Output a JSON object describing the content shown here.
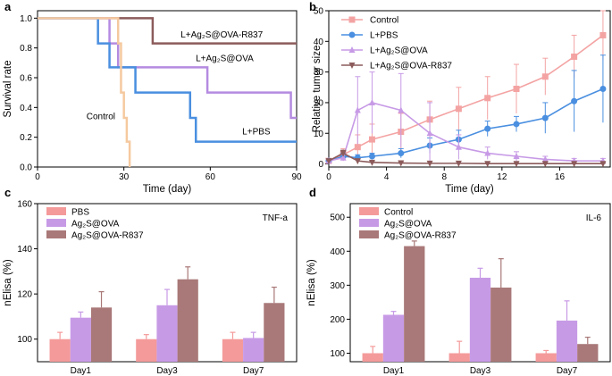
{
  "panels": {
    "a": "a",
    "b": "b",
    "c": "c",
    "d": "d"
  },
  "chart_data": [
    {
      "panel": "a",
      "type": "line",
      "subtype": "step",
      "xlabel": "Time (day)",
      "ylabel": "Survival rate",
      "xlim": [
        0,
        90
      ],
      "ylim": [
        0,
        1.05
      ],
      "xticks": [
        0,
        30,
        60,
        90
      ],
      "yticks": [
        0.0,
        0.2,
        0.4,
        0.6,
        0.8,
        1.0
      ],
      "series": [
        {
          "name": "L+Ag2S@OVA-R837",
          "label": "L+Ag₂S@OVA-R837",
          "color": "#8c5b5b",
          "x": [
            0,
            40,
            40,
            90
          ],
          "y": [
            1.0,
            1.0,
            0.83,
            0.83
          ]
        },
        {
          "name": "L+Ag2S@OVA",
          "label": "L+Ag₂S@OVA",
          "color": "#b48be0",
          "x": [
            0,
            25,
            25,
            28,
            28,
            59,
            59,
            88,
            88,
            90
          ],
          "y": [
            1.0,
            1.0,
            0.83,
            0.83,
            0.67,
            0.67,
            0.5,
            0.5,
            0.33,
            0.33
          ]
        },
        {
          "name": "L+PBS",
          "label": "L+PBS",
          "color": "#4a8fe0",
          "x": [
            0,
            21,
            21,
            25,
            25,
            34,
            34,
            53,
            53,
            55,
            55,
            90
          ],
          "y": [
            1.0,
            1.0,
            0.83,
            0.83,
            0.67,
            0.67,
            0.5,
            0.5,
            0.33,
            0.33,
            0.17,
            0.17
          ]
        },
        {
          "name": "Control",
          "label": "Control",
          "color": "#f5c9a0",
          "x": [
            0,
            28,
            28,
            29,
            29,
            30,
            30,
            31,
            31,
            32,
            32
          ],
          "y": [
            1.0,
            1.0,
            0.83,
            0.83,
            0.5,
            0.5,
            0.33,
            0.33,
            0.17,
            0.17,
            0.0
          ]
        }
      ]
    },
    {
      "panel": "b",
      "type": "line",
      "xlabel": "Time (day)",
      "ylabel": "Relative tumor size",
      "xlim": [
        0,
        19.5
      ],
      "ylim": [
        -1,
        50
      ],
      "xticks": [
        0,
        4,
        8,
        12,
        16
      ],
      "yticks": [
        0,
        10,
        20,
        30,
        40,
        50
      ],
      "legend": "top-left",
      "series": [
        {
          "name": "Control",
          "color": "#f4a3a3",
          "marker": "square",
          "x": [
            0,
            1,
            2,
            3,
            5,
            7,
            9,
            11,
            13,
            15,
            17,
            19
          ],
          "y": [
            1,
            3,
            5.5,
            8,
            10.5,
            14.5,
            18,
            21.5,
            24.5,
            28.5,
            35,
            42
          ],
          "err": [
            0.5,
            2,
            4,
            5,
            6,
            6,
            7,
            7,
            8,
            6,
            7,
            8
          ]
        },
        {
          "name": "L+PBS",
          "color": "#4a8fe0",
          "marker": "circle",
          "x": [
            0,
            1,
            2,
            3,
            5,
            7,
            9,
            11,
            13,
            15,
            17,
            19
          ],
          "y": [
            1,
            2.5,
            2,
            2.5,
            3.5,
            6,
            8,
            11.5,
            13,
            15,
            20.5,
            24.5
          ],
          "err": [
            0.3,
            1,
            1,
            1,
            1.5,
            2.5,
            3,
            2.5,
            2.5,
            5,
            10,
            11
          ]
        },
        {
          "name": "L+Ag2S@OVA",
          "label": "L+Ag₂S@OVA",
          "color": "#c79ae6",
          "marker": "triangle",
          "x": [
            0,
            1,
            2,
            3,
            5,
            7,
            9,
            11,
            13,
            15,
            17,
            19
          ],
          "y": [
            1,
            2,
            17.5,
            20,
            17.5,
            10,
            5.5,
            3.5,
            2.5,
            1.5,
            1,
            1
          ],
          "err": [
            0.3,
            1,
            11,
            10,
            12,
            10,
            4,
            2,
            1.5,
            1,
            0.8,
            0.8
          ]
        },
        {
          "name": "L+Ag2S@OVA-R837",
          "label": "L+Ag₂S@OVA-R837",
          "color": "#8c5b5b",
          "marker": "triangle-down",
          "x": [
            0,
            1,
            2,
            3,
            5,
            7,
            9,
            11,
            13,
            15,
            17,
            19
          ],
          "y": [
            1,
            3.5,
            1,
            0.5,
            0.3,
            0.2,
            0.2,
            0.1,
            0.1,
            0.1,
            0.1,
            0.1
          ],
          "err": [
            0.3,
            1,
            0.5,
            0.3,
            0.2,
            0.1,
            0.1,
            0.1,
            0.1,
            0.1,
            0.1,
            0.1
          ]
        }
      ]
    },
    {
      "panel": "c",
      "type": "bar",
      "title": "TNF-a",
      "xlabel": "",
      "ylabel": "nElisa (%)",
      "ylim": [
        90,
        160
      ],
      "yticks": [
        100,
        120,
        140,
        160
      ],
      "categories": [
        "Day1",
        "Day3",
        "Day7"
      ],
      "legend": "top-left",
      "series": [
        {
          "name": "PBS",
          "label": "PBS",
          "color": "#f49a9a",
          "values": [
            100,
            100,
            100
          ],
          "err": [
            3,
            2,
            3
          ]
        },
        {
          "name": "Ag2S@OVA",
          "label": "Ag₂S@OVA",
          "color": "#c79ae6",
          "values": [
            109.5,
            115,
            100.5
          ],
          "err": [
            2.5,
            7,
            2.5
          ]
        },
        {
          "name": "Ag2S@OVA-R837",
          "label": "Ag₂S@OVA-R837",
          "color": "#a97878",
          "values": [
            114,
            126.5,
            116
          ],
          "err": [
            7,
            5.5,
            7
          ]
        }
      ]
    },
    {
      "panel": "d",
      "type": "bar",
      "title": "IL-6",
      "xlabel": "",
      "ylabel": "nElisa (%)",
      "ylim": [
        75,
        540
      ],
      "yticks": [
        100,
        200,
        300,
        400,
        500
      ],
      "categories": [
        "Day1",
        "Day3",
        "Day7"
      ],
      "legend": "top-left",
      "series": [
        {
          "name": "Control",
          "label": "Control",
          "color": "#f49a9a",
          "values": [
            100,
            100,
            100
          ],
          "err": [
            20,
            35,
            8
          ]
        },
        {
          "name": "Ag2S@OVA",
          "label": "Ag₂S@OVA",
          "color": "#c79ae6",
          "values": [
            213,
            322,
            196
          ],
          "err": [
            10,
            28,
            58
          ]
        },
        {
          "name": "Ag2S@OVA-R837",
          "label": "Ag₂S@OVA-R837",
          "color": "#a97878",
          "values": [
            415,
            293,
            127
          ],
          "err": [
            15,
            85,
            20
          ]
        }
      ]
    }
  ]
}
